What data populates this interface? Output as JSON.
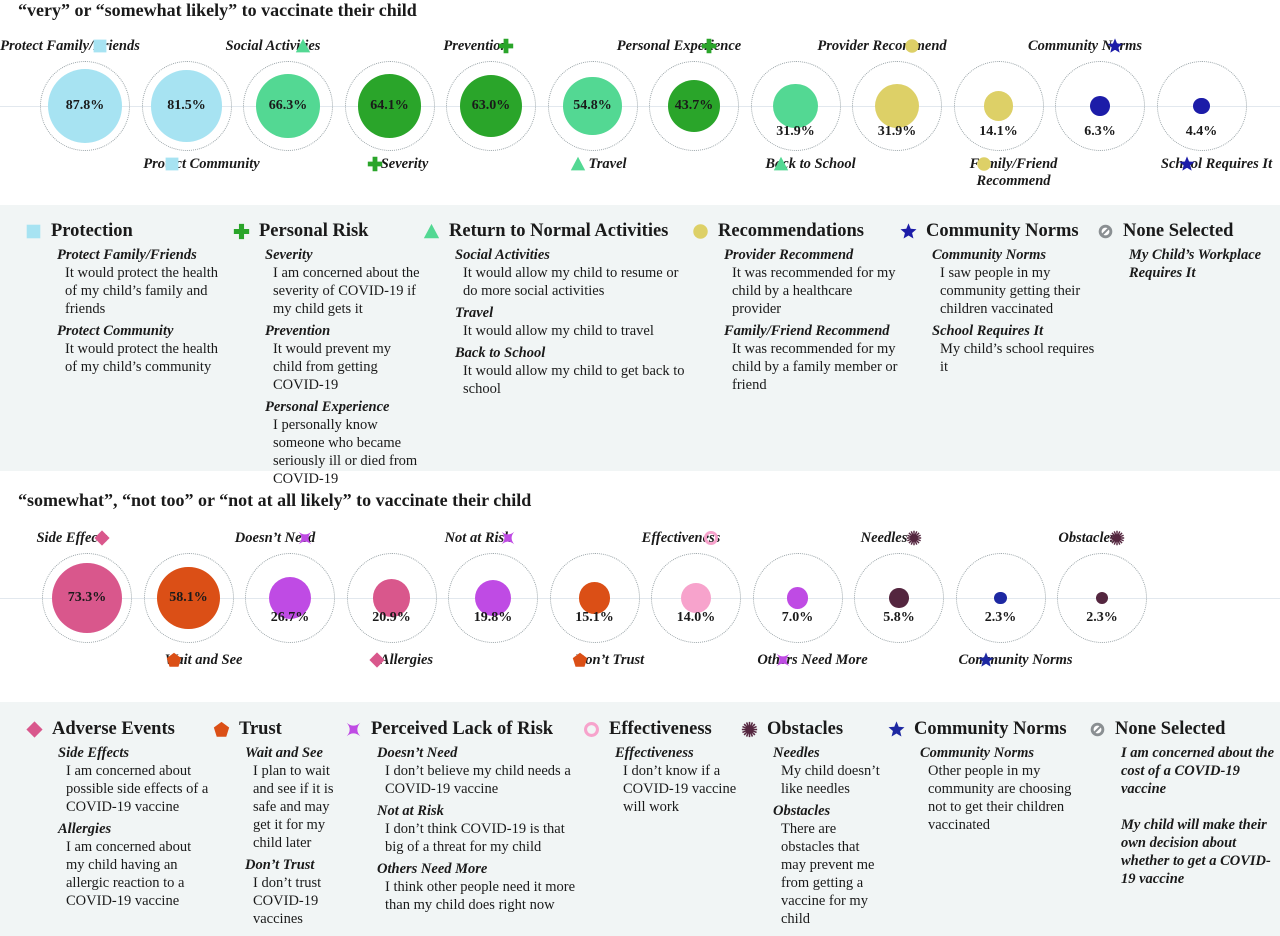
{
  "colors": {
    "protection": "#a7e3f2",
    "personal_risk": "#2aa52a",
    "return_normal": "#53d893",
    "recommendations": "#ddd067",
    "community_norms_top": "#1c1ca8",
    "none": "#8a8f92",
    "adverse": "#d9578c",
    "trust": "#db4f16",
    "lack_risk": "#bf4be4",
    "effectiveness": "#f7a3cc",
    "obstacles": "#54263f",
    "community_norms_bottom": "#1d28a2",
    "dotted_ring": "#9aa4a8"
  },
  "sections": {
    "top_heading": "“very” or “somewhat likely” to vaccinate their child",
    "bottom_heading": "“somewhat”, “not too” or “not at all likely” to vaccinate their child"
  },
  "chart_data": [
    {
      "type": "bubble",
      "title": "“very” or “somewhat likely” to vaccinate their child",
      "unit": "%",
      "series": [
        {
          "label": "Protect Family/Friends",
          "value": 87.8,
          "value_text": "87.8%",
          "category": "Protection",
          "icon": "square-icon",
          "color": "#a7e3f2"
        },
        {
          "label": "Protect Community",
          "value": 81.5,
          "value_text": "81.5%",
          "category": "Protection",
          "icon": "square-icon",
          "color": "#a7e3f2"
        },
        {
          "label": "Social Activities",
          "value": 66.3,
          "value_text": "66.3%",
          "category": "Return to Normal Activities",
          "icon": "triangle-icon",
          "color": "#53d893"
        },
        {
          "label": "Severity",
          "value": 64.1,
          "value_text": "64.1%",
          "category": "Personal Risk",
          "icon": "plus-icon",
          "color": "#2aa52a"
        },
        {
          "label": "Prevention",
          "value": 63.0,
          "value_text": "63.0%",
          "category": "Personal Risk",
          "icon": "plus-icon",
          "color": "#2aa52a"
        },
        {
          "label": "Travel",
          "value": 54.8,
          "value_text": "54.8%",
          "category": "Return to Normal Activities",
          "icon": "triangle-icon",
          "color": "#53d893"
        },
        {
          "label": "Personal Experience",
          "value": 43.7,
          "value_text": "43.7%",
          "category": "Personal Risk",
          "icon": "plus-icon",
          "color": "#2aa52a"
        },
        {
          "label": "Back to School",
          "value": 31.9,
          "value_text": "31.9%",
          "category": "Return to Normal Activities",
          "icon": "triangle-icon",
          "color": "#53d893"
        },
        {
          "label": "Provider Recommend",
          "value": 31.9,
          "value_text": "31.9%",
          "category": "Recommendations",
          "icon": "circle-icon",
          "color": "#ddd067"
        },
        {
          "label": "Family/Friend Recommend",
          "value": 14.1,
          "value_text": "14.1%",
          "category": "Recommendations",
          "icon": "circle-icon",
          "color": "#ddd067"
        },
        {
          "label": "Community Norms",
          "value": 6.3,
          "value_text": "6.3%",
          "category": "Community Norms",
          "icon": "star-icon",
          "color": "#1c1ca8"
        },
        {
          "label": "School Requires It",
          "value": 4.4,
          "value_text": "4.4%",
          "category": "Community Norms",
          "icon": "star-icon",
          "color": "#1c1ca8"
        }
      ]
    },
    {
      "type": "bubble",
      "title": "“somewhat”, “not too” or “not at all likely” to vaccinate their child",
      "unit": "%",
      "series": [
        {
          "label": "Side Effects",
          "value": 73.3,
          "value_text": "73.3%",
          "category": "Adverse Events",
          "icon": "diamond-icon",
          "color": "#d9578c"
        },
        {
          "label": "Wait and See",
          "value": 58.1,
          "value_text": "58.1%",
          "category": "Trust",
          "icon": "pentagon-icon",
          "color": "#db4f16"
        },
        {
          "label": "Doesn’t Need",
          "value": 26.7,
          "value_text": "26.7%",
          "category": "Perceived Lack of Risk",
          "icon": "four-point-star-icon",
          "color": "#bf4be4"
        },
        {
          "label": "Allergies",
          "value": 20.9,
          "value_text": "20.9%",
          "category": "Adverse Events",
          "icon": "diamond-icon",
          "color": "#d9578c"
        },
        {
          "label": "Not at Risk",
          "value": 19.8,
          "value_text": "19.8%",
          "category": "Perceived Lack of Risk",
          "icon": "four-point-star-icon",
          "color": "#bf4be4"
        },
        {
          "label": "Don’t Trust",
          "value": 15.1,
          "value_text": "15.1%",
          "category": "Trust",
          "icon": "pentagon-icon",
          "color": "#db4f16"
        },
        {
          "label": "Effectiveness",
          "value": 14.0,
          "value_text": "14.0%",
          "category": "Effectiveness",
          "icon": "ring-icon",
          "color": "#f7a3cc"
        },
        {
          "label": "Others Need More",
          "value": 7.0,
          "value_text": "7.0%",
          "category": "Perceived Lack of Risk",
          "icon": "four-point-star-icon",
          "color": "#bf4be4"
        },
        {
          "label": "Needles",
          "value": 5.8,
          "value_text": "5.8%",
          "category": "Obstacles",
          "icon": "burst-icon",
          "color": "#54263f"
        },
        {
          "label": "Community Norms",
          "value": 2.3,
          "value_text": "2.3%",
          "category": "Community Norms",
          "icon": "star-icon",
          "color": "#1d28a2"
        },
        {
          "label": "Obstacles",
          "value": 2.3,
          "value_text": "2.3%",
          "category": "Obstacles",
          "icon": "burst-icon",
          "color": "#54263f"
        }
      ]
    }
  ],
  "legend_top": [
    {
      "title": "Protection",
      "icon": "square-icon",
      "color": "#a7e3f2",
      "items": [
        {
          "t": "Protect Family/Friends",
          "d": "It would protect the health of my child’s family and friends"
        },
        {
          "t": "Protect Community",
          "d": "It would protect the health of my child’s community"
        }
      ]
    },
    {
      "title": "Personal Risk",
      "icon": "plus-icon",
      "color": "#2aa52a",
      "items": [
        {
          "t": "Severity",
          "d": "I am concerned about the severity of COVID-19 if my child gets it"
        },
        {
          "t": "Prevention",
          "d": "It would prevent my child from getting COVID-19"
        },
        {
          "t": "Personal Experience",
          "d": "I personally know someone who became seriously ill or died from COVID-19"
        }
      ]
    },
    {
      "title": "Return to Normal Activities",
      "icon": "triangle-icon",
      "color": "#53d893",
      "items": [
        {
          "t": "Social Activities",
          "d": "It would allow my child to resume or do more social activities"
        },
        {
          "t": "Travel",
          "d": "It would allow my child to travel"
        },
        {
          "t": "Back to School",
          "d": "It would allow my child to get back to school"
        }
      ]
    },
    {
      "title": "Recommendations",
      "icon": "circle-icon",
      "color": "#ddd067",
      "items": [
        {
          "t": "Provider Recommend",
          "d": "It was recommended for my child by a healthcare provider"
        },
        {
          "t": "Family/Friend Recommend",
          "d": "It was recommended for my child by a family member or friend"
        }
      ]
    },
    {
      "title": "Community Norms",
      "icon": "star-icon",
      "color": "#1c1ca8",
      "items": [
        {
          "t": "Community Norms",
          "d": "I saw people in my community getting their children vaccinated"
        },
        {
          "t": "School Requires It",
          "d": "My child’s school requires it"
        }
      ]
    },
    {
      "title": "None Selected",
      "icon": "no-entry-icon",
      "color": "#8a8f92",
      "notes": [
        "My Child’s Workplace Requires It"
      ]
    }
  ],
  "legend_bottom": [
    {
      "title": "Adverse Events",
      "icon": "diamond-icon",
      "color": "#d9578c",
      "items": [
        {
          "t": "Side Effects",
          "d": "I am concerned about possible side effects of a COVID-19 vaccine"
        },
        {
          "t": "Allergies",
          "d": "I am concerned about my child having an allergic reaction to a COVID-19 vaccine"
        }
      ]
    },
    {
      "title": "Trust",
      "icon": "pentagon-icon",
      "color": "#db4f16",
      "items": [
        {
          "t": "Wait and See",
          "d": "I plan to wait and see if it is safe and may get it for my child later"
        },
        {
          "t": "Don’t Trust",
          "d": "I don’t trust COVID-19 vaccines"
        }
      ]
    },
    {
      "title": "Perceived Lack of Risk",
      "icon": "four-point-star-icon",
      "color": "#bf4be4",
      "items": [
        {
          "t": "Doesn’t Need",
          "d": "I don’t believe my child needs a COVID-19 vaccine"
        },
        {
          "t": "Not at Risk",
          "d": "I don’t think COVID-19 is that big of a threat for my child"
        },
        {
          "t": "Others Need More",
          "d": "I think other people need it more than my child does right now"
        }
      ]
    },
    {
      "title": "Effectiveness",
      "icon": "ring-icon",
      "color": "#f7a3cc",
      "items": [
        {
          "t": "Effectiveness",
          "d": "I don’t know if a COVID-19 vaccine will work"
        }
      ]
    },
    {
      "title": "Obstacles",
      "icon": "burst-icon",
      "color": "#54263f",
      "items": [
        {
          "t": "Needles",
          "d": "My child doesn’t like needles"
        },
        {
          "t": "Obstacles",
          "d": "There are obstacles that may prevent me from getting a vaccine for my child"
        }
      ]
    },
    {
      "title": "Community Norms",
      "icon": "star-icon",
      "color": "#1d28a2",
      "items": [
        {
          "t": "Community Norms",
          "d": "Other people in my community are choosing not to get their children vaccinated"
        }
      ]
    },
    {
      "title": "None Selected",
      "icon": "no-entry-icon",
      "color": "#8a8f92",
      "notes": [
        "I am concerned about the cost of a COVID-19 vaccine",
        "My child will make their own decision about whether to get a COVID-19 vaccine"
      ]
    }
  ]
}
